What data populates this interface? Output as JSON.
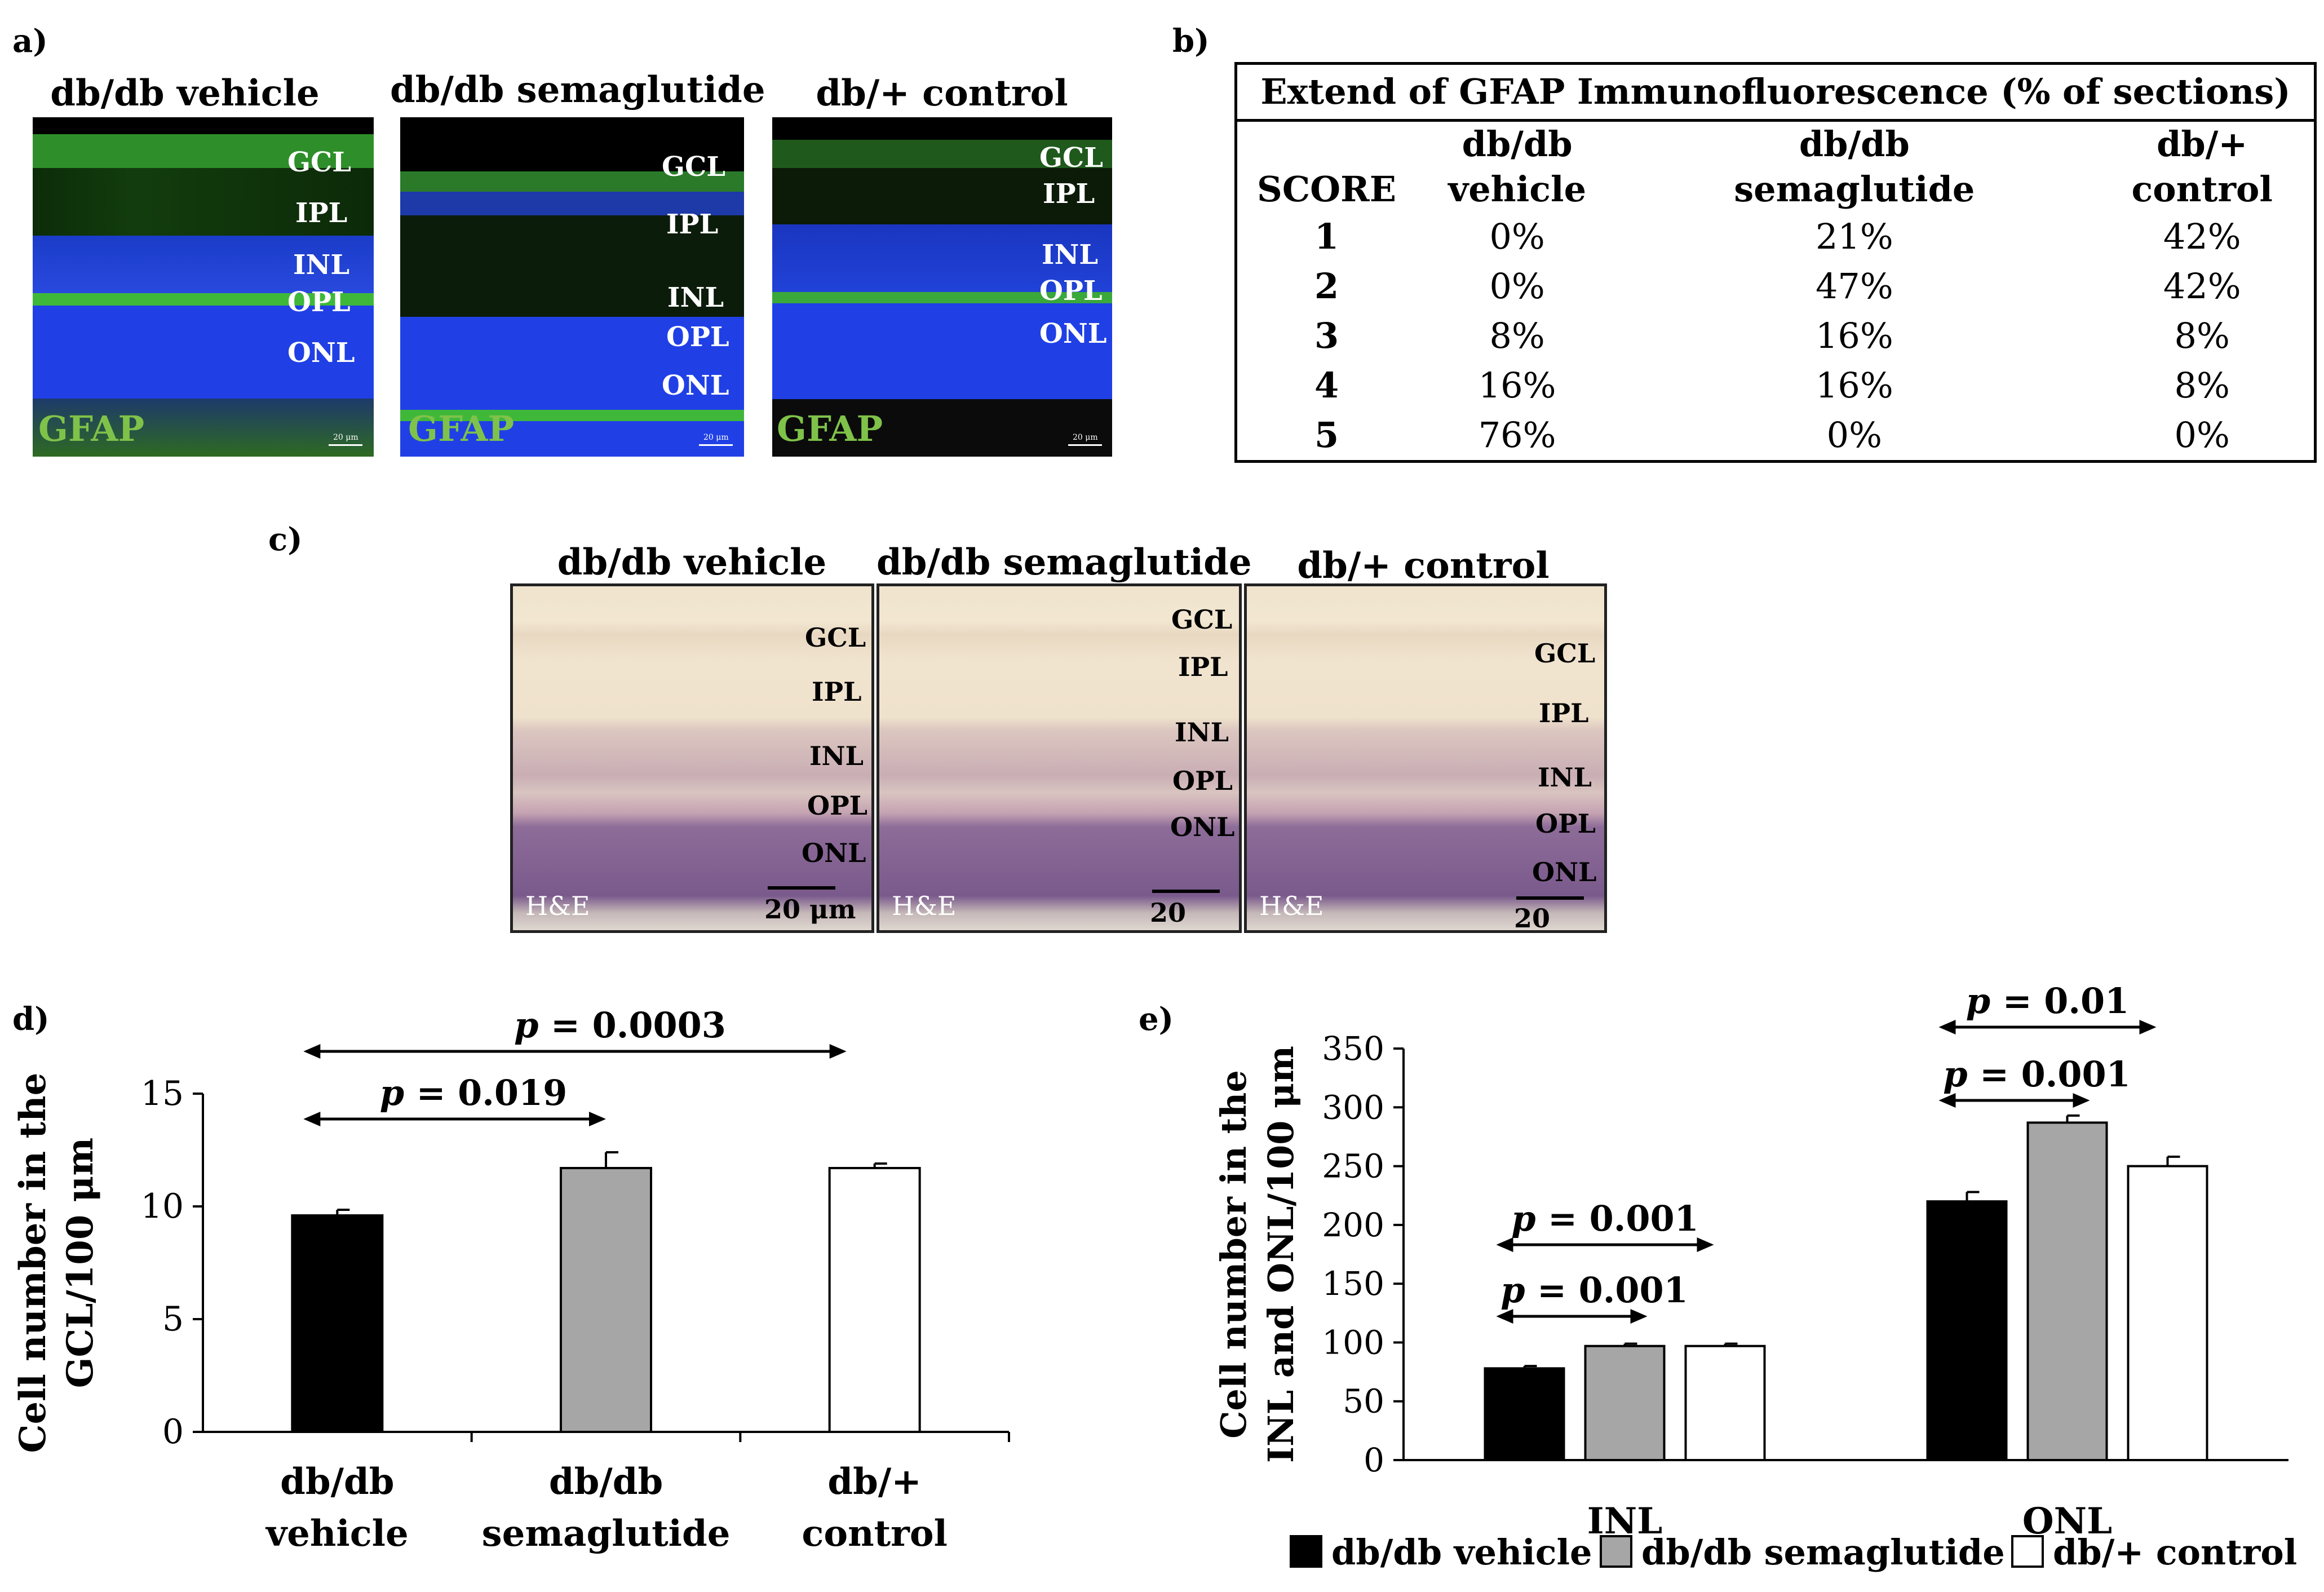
{
  "panel_labels": {
    "a": "a)",
    "b": "b)",
    "c": "c)",
    "d": "d)",
    "e": "e)"
  },
  "panel_a": {
    "titles": [
      "db/db vehicle",
      "db/db semaglutide",
      "db/+ control"
    ],
    "stain": "GFAP",
    "scale": "20 μm",
    "layers": [
      "GCL",
      "IPL",
      "INL",
      "OPL",
      "ONL"
    ]
  },
  "panel_b": {
    "title": "Extend of GFAP Immunofluorescence (% of sections)",
    "header": {
      "score": "SCORE",
      "col1a": "db/db",
      "col1b": "vehicle",
      "col2a": "db/db",
      "col2b": "semaglutide",
      "col3a": "db/+",
      "col3b": "control"
    },
    "rows": [
      {
        "score": "1",
        "v": "0%",
        "s": "21%",
        "c": "42%"
      },
      {
        "score": "2",
        "v": "0%",
        "s": "47%",
        "c": "42%"
      },
      {
        "score": "3",
        "v": "8%",
        "s": "16%",
        "c": "8%"
      },
      {
        "score": "4",
        "v": "16%",
        "s": "16%",
        "c": "8%"
      },
      {
        "score": "5",
        "v": "76%",
        "s": "0%",
        "c": "0%"
      }
    ]
  },
  "panel_c": {
    "titles": [
      "db/db vehicle",
      "db/db semaglutide",
      "db/+ control"
    ],
    "stain": "H&E",
    "scale": "20 μm",
    "layers": [
      "GCL",
      "IPL",
      "INL",
      "OPL",
      "ONL"
    ]
  },
  "colors": {
    "vehicle": "#000000",
    "semaglutide": "#a6a6a6",
    "control": "#ffffff",
    "gfap_green": "#7fc24a",
    "nuclei_blue": "#1f3fd8"
  },
  "chart_data": [
    {
      "type": "bar",
      "panel": "d",
      "categories": [
        "db/db vehicle",
        "db/db semaglutide",
        "db/+ control"
      ],
      "category_lines": [
        [
          "db/db",
          "vehicle"
        ],
        [
          "db/db",
          "semaglutide"
        ],
        [
          "db/+",
          "control"
        ]
      ],
      "values": [
        9.6,
        11.7,
        11.7
      ],
      "errors": [
        0.25,
        0.7,
        0.2
      ],
      "ylabel_lines": [
        "Cell number in the",
        "GCL/100 μm"
      ],
      "ylim": [
        0,
        15
      ],
      "yticks": [
        "0",
        "5",
        "10",
        "15"
      ],
      "annotations": [
        {
          "from": 0,
          "to": 1,
          "p": "p",
          "text": " = 0.019"
        },
        {
          "from": 0,
          "to": 2,
          "p": "p",
          "text": " = 0.0003"
        }
      ]
    },
    {
      "type": "bar",
      "panel": "e",
      "categories": [
        "INL",
        "ONL"
      ],
      "series": [
        {
          "name": "db/db vehicle",
          "values": [
            78,
            220
          ],
          "errors": [
            2,
            8
          ]
        },
        {
          "name": "db/db semaglutide",
          "values": [
            97,
            287
          ],
          "errors": [
            2,
            6
          ]
        },
        {
          "name": "db/+ control",
          "values": [
            97,
            250
          ],
          "errors": [
            2,
            8
          ]
        }
      ],
      "ylabel_lines": [
        "Cell number in the",
        "INL and ONL/100 μm"
      ],
      "ylim": [
        0,
        350
      ],
      "yticks": [
        "0",
        "50",
        "100",
        "150",
        "200",
        "250",
        "300",
        "350"
      ],
      "annotations": [
        {
          "group": 0,
          "from": 0,
          "to": 1,
          "p": "p",
          "text": " = 0.001"
        },
        {
          "group": 0,
          "from": 0,
          "to": 2,
          "p": "p",
          "text": " = 0.001"
        },
        {
          "group": 1,
          "from": 0,
          "to": 1,
          "p": "p",
          "text": " = 0.001"
        },
        {
          "group": 1,
          "from": 0,
          "to": 2,
          "p": "p",
          "text": " = 0.01"
        }
      ],
      "legend": [
        "db/db vehicle",
        "db/db semaglutide",
        "db/+ control"
      ]
    }
  ]
}
